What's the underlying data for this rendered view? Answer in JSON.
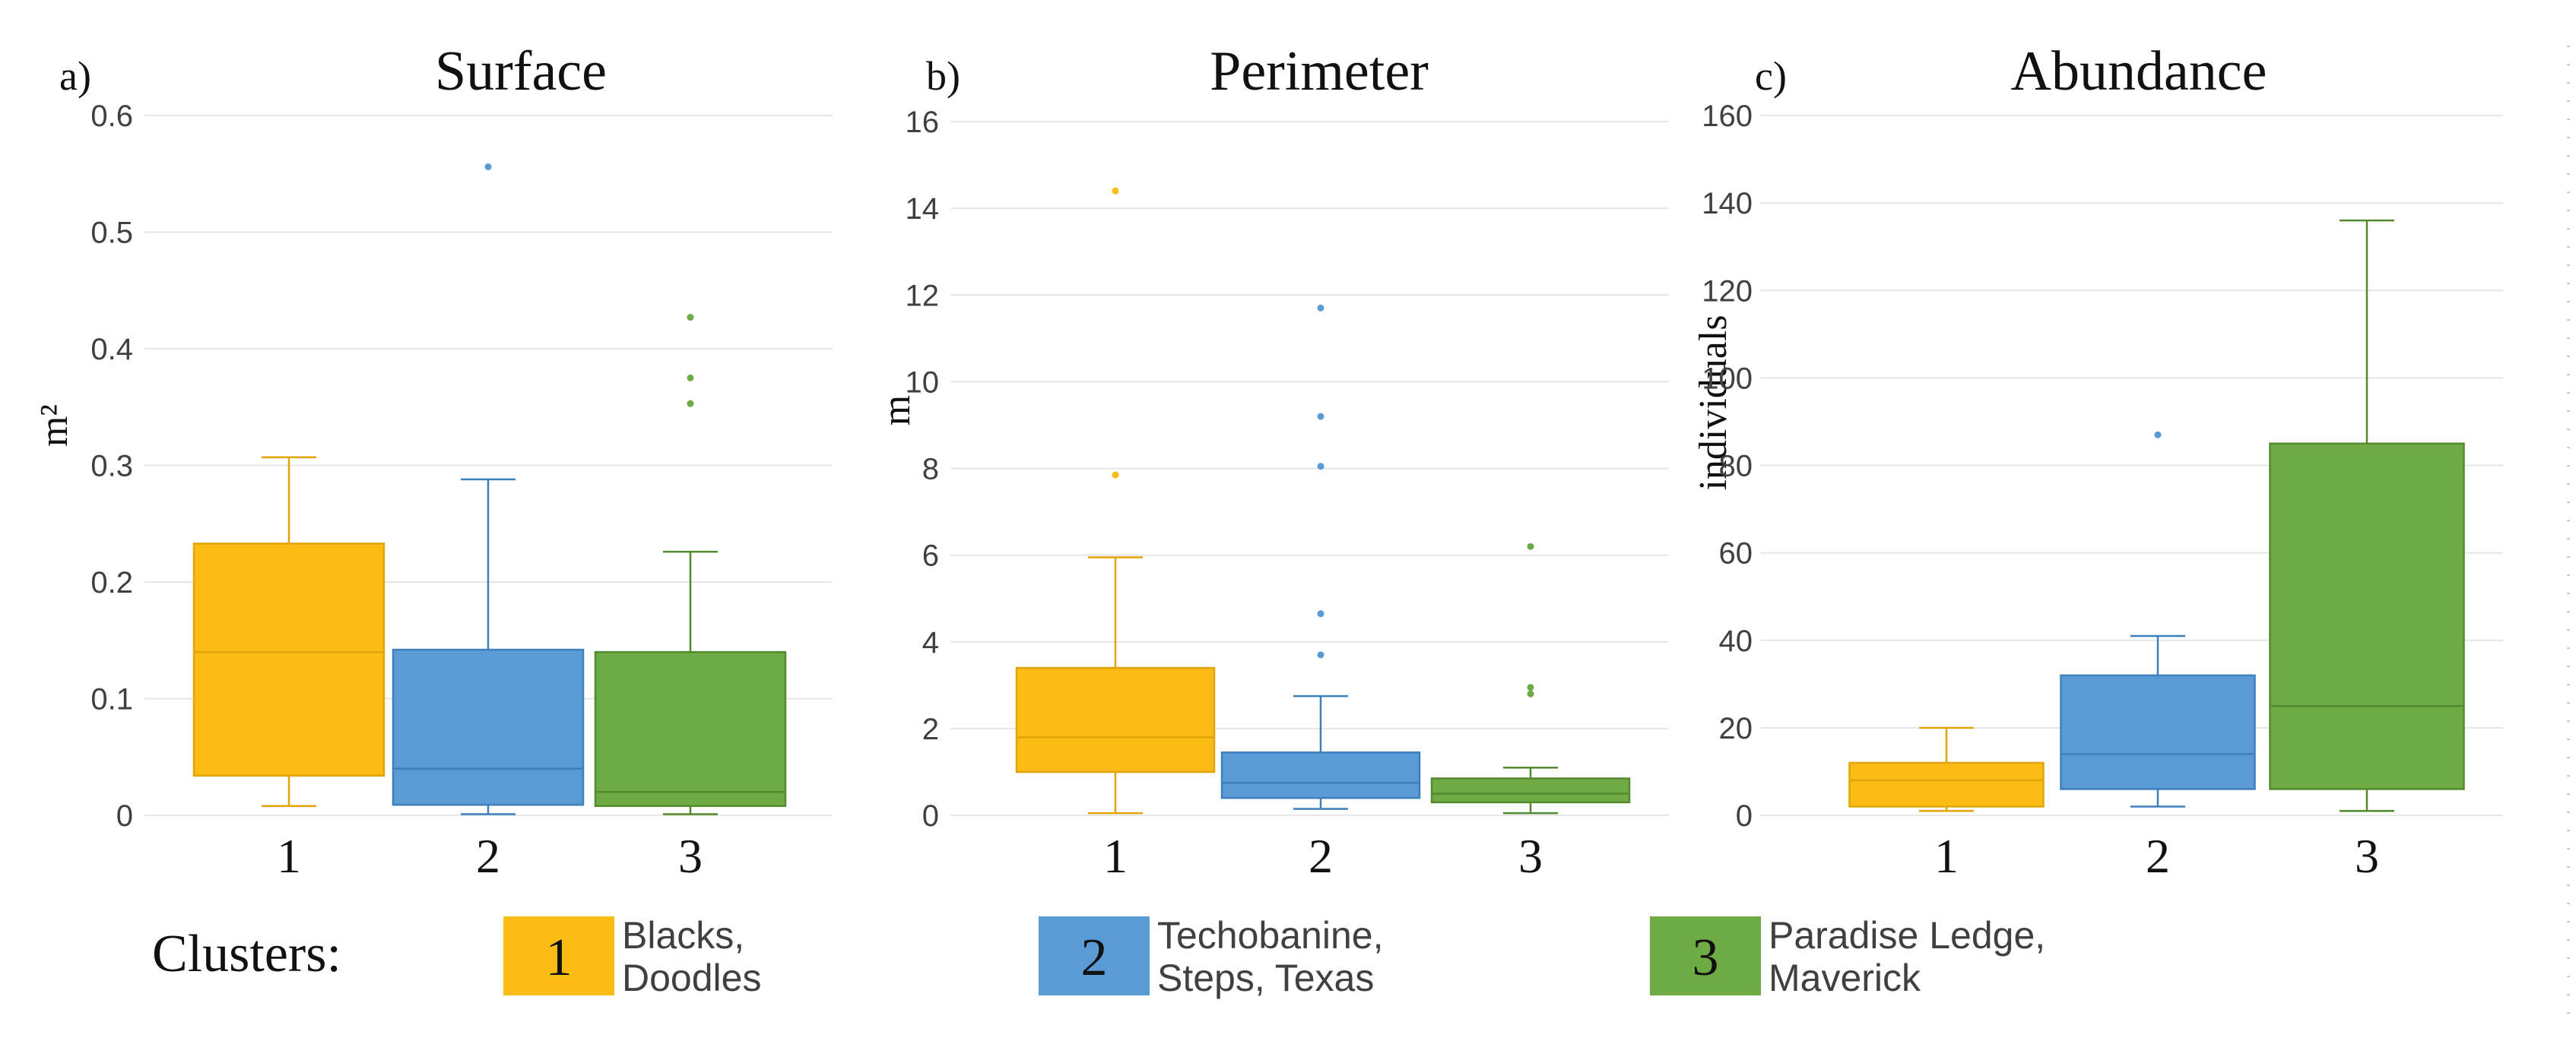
{
  "colors": {
    "cluster1": "#FBBC16",
    "cluster1_line": "#E1A50A",
    "cluster2": "#5B9BD5",
    "cluster2_line": "#3F7FBB",
    "cluster3": "#6EAB45",
    "cluster3_line": "#538A2F",
    "grid": "#E6E6E6",
    "axis_text": "#404040"
  },
  "chart_data": [
    {
      "type": "box",
      "panel_label": "a)",
      "title": "Surface",
      "xlabel": "",
      "ylabel": "m²",
      "ylim": [
        0,
        0.6
      ],
      "yticks": [
        0,
        0.1,
        0.2,
        0.3,
        0.4,
        0.5,
        0.6
      ],
      "ytick_labels": [
        "0",
        "0.1",
        "0.2",
        "0.3",
        "0.4",
        "0.5",
        "0.6"
      ],
      "categories": [
        "1",
        "2",
        "3"
      ],
      "series": [
        {
          "name": "1",
          "whisker_low": 0.008,
          "q1": 0.034,
          "median": 0.14,
          "q3": 0.233,
          "whisker_high": 0.307,
          "outliers": []
        },
        {
          "name": "2",
          "whisker_low": 0.001,
          "q1": 0.009,
          "median": 0.04,
          "q3": 0.142,
          "whisker_high": 0.288,
          "outliers": [
            0.556
          ]
        },
        {
          "name": "3",
          "whisker_low": 0.001,
          "q1": 0.008,
          "median": 0.02,
          "q3": 0.14,
          "whisker_high": 0.226,
          "outliers": [
            0.353,
            0.375,
            0.427
          ]
        }
      ]
    },
    {
      "type": "box",
      "panel_label": "b)",
      "title": "Perimeter",
      "xlabel": "",
      "ylabel": "m",
      "ylim": [
        0,
        16
      ],
      "yticks": [
        0,
        2,
        4,
        6,
        8,
        10,
        12,
        14,
        16
      ],
      "ytick_labels": [
        "0",
        "2",
        "4",
        "6",
        "8",
        "10",
        "12",
        "14",
        "16"
      ],
      "categories": [
        "1",
        "2",
        "3"
      ],
      "series": [
        {
          "name": "1",
          "whisker_low": 0.05,
          "q1": 1.0,
          "median": 1.8,
          "q3": 3.4,
          "whisker_high": 5.95,
          "outliers": [
            7.85,
            14.4
          ]
        },
        {
          "name": "2",
          "whisker_low": 0.15,
          "q1": 0.4,
          "median": 0.75,
          "q3": 1.45,
          "whisker_high": 2.75,
          "outliers": [
            3.7,
            4.65,
            8.05,
            9.2,
            11.7
          ]
        },
        {
          "name": "3",
          "whisker_low": 0.05,
          "q1": 0.3,
          "median": 0.5,
          "q3": 0.85,
          "whisker_high": 1.1,
          "outliers": [
            2.8,
            2.95,
            6.2
          ]
        }
      ]
    },
    {
      "type": "box",
      "panel_label": "c)",
      "title": "Abundance",
      "xlabel": "",
      "ylabel": "individuals",
      "ylim": [
        0,
        160
      ],
      "yticks": [
        0,
        20,
        40,
        60,
        80,
        100,
        120,
        140,
        160
      ],
      "ytick_labels": [
        "0",
        "20",
        "40",
        "60",
        "80",
        "100",
        "120",
        "140",
        "160"
      ],
      "categories": [
        "1",
        "2",
        "3"
      ],
      "series": [
        {
          "name": "1",
          "whisker_low": 1,
          "q1": 2,
          "median": 8,
          "q3": 12,
          "whisker_high": 20,
          "outliers": []
        },
        {
          "name": "2",
          "whisker_low": 2,
          "q1": 6,
          "median": 14,
          "q3": 32,
          "whisker_high": 41,
          "outliers": [
            87
          ]
        },
        {
          "name": "3",
          "whisker_low": 1,
          "q1": 6,
          "median": 25,
          "q3": 85,
          "whisker_high": 136,
          "outliers": []
        }
      ]
    }
  ],
  "legend": {
    "title": "Clusters:",
    "items": [
      {
        "id": "1",
        "line1": "Blacks,",
        "line2": "Doodles"
      },
      {
        "id": "2",
        "line1": "Techobanine,",
        "line2": "Steps, Texas"
      },
      {
        "id": "3",
        "line1": "Paradise Ledge,",
        "line2": "Maverick"
      }
    ]
  }
}
